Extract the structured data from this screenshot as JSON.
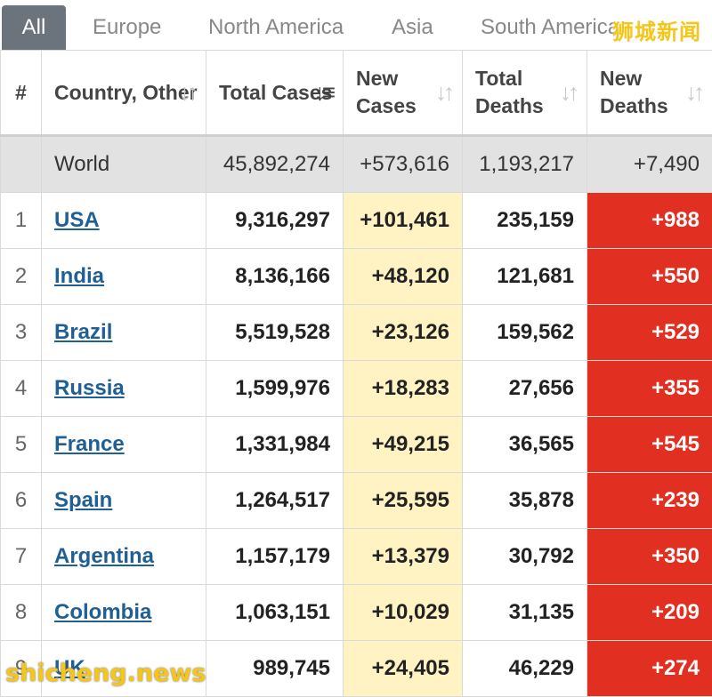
{
  "tabs": [
    {
      "label": "All",
      "active": true
    },
    {
      "label": "Europe"
    },
    {
      "label": "North America"
    },
    {
      "label": "Asia"
    },
    {
      "label": "South America"
    }
  ],
  "watermark_top": "狮城新闻",
  "watermark_bottom": "shicheng.news",
  "columns": {
    "rank": "#",
    "country": "Country, Other",
    "total_cases": "Total Cases",
    "new_cases": "New Cases",
    "total_deaths": "Total Deaths",
    "new_deaths": "New Deaths"
  },
  "world": {
    "country": "World",
    "total_cases": "45,892,274",
    "new_cases": "+573,616",
    "total_deaths": "1,193,217",
    "new_deaths": "+7,490"
  },
  "rows": [
    {
      "rank": "1",
      "country": "USA",
      "total_cases": "9,316,297",
      "new_cases": "+101,461",
      "total_deaths": "235,159",
      "new_deaths": "+988"
    },
    {
      "rank": "2",
      "country": "India",
      "total_cases": "8,136,166",
      "new_cases": "+48,120",
      "total_deaths": "121,681",
      "new_deaths": "+550"
    },
    {
      "rank": "3",
      "country": "Brazil",
      "total_cases": "5,519,528",
      "new_cases": "+23,126",
      "total_deaths": "159,562",
      "new_deaths": "+529"
    },
    {
      "rank": "4",
      "country": "Russia",
      "total_cases": "1,599,976",
      "new_cases": "+18,283",
      "total_deaths": "27,656",
      "new_deaths": "+355"
    },
    {
      "rank": "5",
      "country": "France",
      "total_cases": "1,331,984",
      "new_cases": "+49,215",
      "total_deaths": "36,565",
      "new_deaths": "+545"
    },
    {
      "rank": "6",
      "country": "Spain",
      "total_cases": "1,264,517",
      "new_cases": "+25,595",
      "total_deaths": "35,878",
      "new_deaths": "+239"
    },
    {
      "rank": "7",
      "country": "Argentina",
      "total_cases": "1,157,179",
      "new_cases": "+13,379",
      "total_deaths": "30,792",
      "new_deaths": "+350"
    },
    {
      "rank": "8",
      "country": "Colombia",
      "total_cases": "1,063,151",
      "new_cases": "+10,029",
      "total_deaths": "31,135",
      "new_deaths": "+209"
    },
    {
      "rank": "9",
      "country": "UK",
      "total_cases": "989,745",
      "new_cases": "+24,405",
      "total_deaths": "46,229",
      "new_deaths": "+274"
    }
  ],
  "colors": {
    "active_tab": "#6b747c",
    "new_cases_bg": "#fff3c4",
    "new_deaths_bg": "#e12f22",
    "link": "#1f5f96",
    "world_row_bg": "#e2e2e2",
    "watermark": "#f5c518"
  }
}
